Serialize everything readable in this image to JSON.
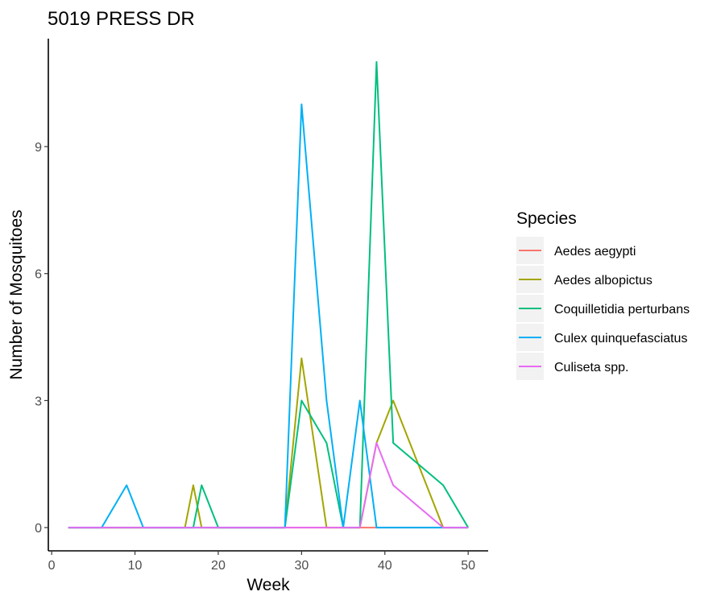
{
  "chart_data": {
    "type": "line",
    "title": "5019 PRESS DR",
    "xlabel": "Week",
    "ylabel": "Number of Mosquitoes",
    "xlim": [
      -0.4,
      52.4
    ],
    "ylim": [
      -0.55,
      11.55
    ],
    "x_ticks": [
      0,
      10,
      20,
      30,
      40,
      50
    ],
    "y_ticks": [
      0,
      3,
      6,
      9
    ],
    "grid": false,
    "legend": {
      "title": "Species",
      "position": "right"
    },
    "series": [
      {
        "name": "Aedes aegypti",
        "color": "#F8766D",
        "x": [
          2,
          6,
          9,
          11,
          16,
          17,
          18,
          20,
          28,
          30,
          33,
          35,
          37,
          39,
          41,
          47,
          50
        ],
        "y": [
          0,
          0,
          0,
          0,
          0,
          0,
          0,
          0,
          0,
          0,
          0,
          0,
          0,
          0,
          0,
          0,
          0
        ]
      },
      {
        "name": "Aedes albopictus",
        "color": "#A3A500",
        "x": [
          2,
          6,
          9,
          11,
          16,
          17,
          18,
          20,
          28,
          30,
          33,
          35,
          37,
          39,
          41,
          47,
          50
        ],
        "y": [
          0,
          0,
          0,
          0,
          0,
          1,
          0,
          0,
          0,
          4,
          0,
          0,
          0,
          2,
          3,
          0,
          0
        ]
      },
      {
        "name": "Coquilletidia perturbans",
        "color": "#00BF7D",
        "x": [
          2,
          6,
          9,
          11,
          16,
          17,
          18,
          20,
          28,
          30,
          33,
          35,
          37,
          39,
          41,
          47,
          50
        ],
        "y": [
          0,
          0,
          0,
          0,
          0,
          0,
          1,
          0,
          0,
          3,
          2,
          0,
          0,
          11,
          2,
          1,
          0
        ]
      },
      {
        "name": "Culex quinquefasciatus",
        "color": "#00B0F6",
        "x": [
          2,
          6,
          9,
          11,
          16,
          17,
          18,
          20,
          28,
          30,
          33,
          35,
          37,
          39,
          41,
          47,
          50
        ],
        "y": [
          0,
          0,
          1,
          0,
          0,
          0,
          0,
          0,
          0,
          10,
          3,
          0,
          3,
          0,
          0,
          0,
          0
        ]
      },
      {
        "name": "Culiseta spp.",
        "color": "#E76BF3",
        "x": [
          2,
          6,
          9,
          11,
          16,
          17,
          18,
          20,
          28,
          30,
          33,
          35,
          37,
          39,
          41,
          47,
          50
        ],
        "y": [
          0,
          0,
          0,
          0,
          0,
          0,
          0,
          0,
          0,
          0,
          0,
          0,
          0,
          2,
          1,
          0,
          0
        ]
      }
    ]
  }
}
